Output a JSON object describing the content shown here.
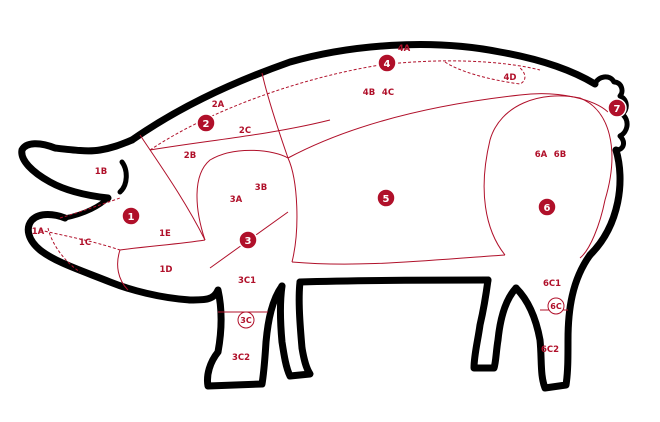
{
  "colors": {
    "outline": "#000000",
    "cuts": "#b0102a",
    "badge_text": "#ffffff"
  },
  "badges": [
    "1",
    "2",
    "3",
    "4",
    "5",
    "6",
    "7"
  ],
  "labels": [
    "1A",
    "1B",
    "1C",
    "1D",
    "1E",
    "2A",
    "2B",
    "2C",
    "3A",
    "3B",
    "3C1",
    "3C2",
    "4A",
    "4B",
    "4C",
    "4D",
    "6A",
    "6B",
    "6C1",
    "6C2"
  ],
  "rings": [
    "3C",
    "6C"
  ]
}
